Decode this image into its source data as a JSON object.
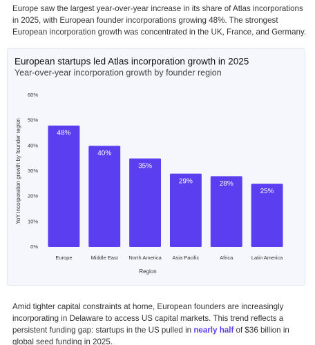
{
  "paragraphs": [
    "Europe saw the largest year-over-year increase in its share of Atlas incorporations in 2025, with European founder incorporations growing 48%. The strongest European incorporation growth was concentrated in the UK, France, and Germany.",
    {
      "before": "Amid tighter capital constraints at home, European founders are increasingly incorporating in Delaware to access US capital markets. This trend reflects a persistent funding gap: startups in the US pulled in ",
      "link": "nearly half",
      "after": " of $36 billion in global seed funding in 2025."
    }
  ],
  "chart_data": {
    "type": "bar",
    "title": "European startups led Atlas incorporation growth in 2025",
    "subtitle": "Year-over-year incorporation growth by founder region",
    "x_label": "Region",
    "y_label": "YoY incorporation growth by founder region",
    "categories": [
      "Europe",
      "Middle East",
      "North America",
      "Asia Pacific",
      "Africa",
      "Latin America"
    ],
    "values": [
      48,
      40,
      35,
      29,
      28,
      25
    ],
    "value_labels": [
      "48%",
      "40%",
      "35%",
      "29%",
      "28%",
      "25%"
    ],
    "color": "#5b3ef0",
    "ylim": [
      0,
      60
    ],
    "yticks": [
      {
        "value": 0,
        "label": "0%"
      },
      {
        "value": 10,
        "label": "10%"
      },
      {
        "value": 20,
        "label": "20%"
      },
      {
        "value": 30,
        "label": "30%"
      },
      {
        "value": 40,
        "label": "40%"
      },
      {
        "value": 50,
        "label": "50%"
      },
      {
        "value": 60,
        "label": "60%"
      }
    ]
  }
}
